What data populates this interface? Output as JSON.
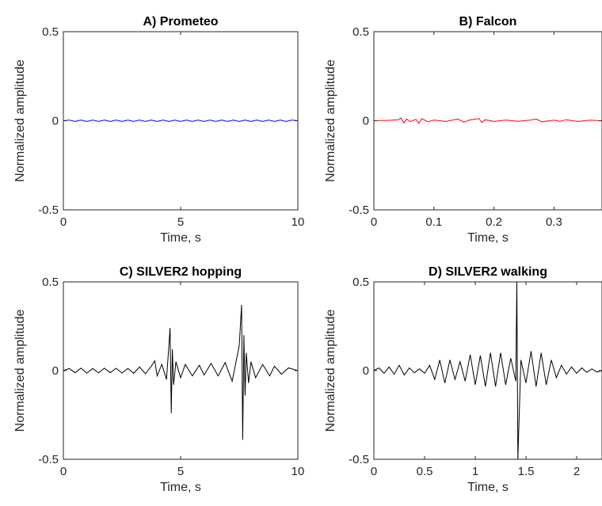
{
  "chart_data": [
    {
      "type": "line",
      "title": "A) Prometeo",
      "xlabel": "Time, s",
      "ylabel": "Normalized amplitude",
      "xlim": [
        0,
        10
      ],
      "ylim": [
        -0.5,
        0.5
      ],
      "xticks": [
        "0",
        "5",
        "10"
      ],
      "yticks": [
        "-0.5",
        "0",
        "0.5"
      ],
      "color": "#0000ff",
      "series": [
        {
          "x": [
            0,
            0.25,
            0.5,
            0.75,
            1,
            1.25,
            1.5,
            1.75,
            2,
            2.25,
            2.5,
            2.75,
            3,
            3.25,
            3.5,
            3.75,
            4,
            4.25,
            4.5,
            4.75,
            5,
            5.25,
            5.5,
            5.75,
            6,
            6.25,
            6.5,
            6.75,
            7,
            7.25,
            7.5,
            7.75,
            8,
            8.25,
            8.5,
            8.75,
            9,
            9.25,
            9.5,
            9.75,
            10
          ],
          "y": [
            0,
            0.004,
            -0.004,
            0.004,
            -0.004,
            0.004,
            -0.004,
            0.004,
            -0.004,
            0.004,
            -0.004,
            0.004,
            -0.004,
            0.004,
            -0.004,
            0.004,
            -0.004,
            0.004,
            -0.004,
            0.004,
            -0.004,
            0.004,
            -0.004,
            0.004,
            -0.004,
            0.004,
            -0.004,
            0.004,
            -0.004,
            0.004,
            -0.004,
            0.004,
            -0.004,
            0.004,
            -0.004,
            0.004,
            -0.004,
            0.004,
            -0.004,
            0.004,
            0
          ]
        }
      ]
    },
    {
      "type": "line",
      "title": "B) Falcon",
      "xlabel": "Time, s",
      "ylabel": "Normalized amplitude",
      "xlim": [
        0,
        0.38
      ],
      "ylim": [
        -0.5,
        0.5
      ],
      "xticks": [
        "0",
        "0.1",
        "0.2",
        "0.3"
      ],
      "yticks": [
        "-0.5",
        "0",
        "0.5"
      ],
      "color": "#ff0000",
      "series": [
        {
          "x": [
            0,
            0.02,
            0.04,
            0.045,
            0.05,
            0.055,
            0.06,
            0.07,
            0.075,
            0.08,
            0.09,
            0.1,
            0.12,
            0.14,
            0.15,
            0.16,
            0.175,
            0.18,
            0.185,
            0.2,
            0.22,
            0.24,
            0.26,
            0.27,
            0.28,
            0.3,
            0.31,
            0.32,
            0.34,
            0.36,
            0.38
          ],
          "y": [
            0,
            0.002,
            0.005,
            0.015,
            -0.012,
            0.01,
            -0.005,
            0.008,
            -0.015,
            0.012,
            -0.006,
            0.004,
            -0.004,
            0.01,
            -0.008,
            0.005,
            0.012,
            -0.01,
            0.006,
            -0.004,
            0.004,
            -0.003,
            0.003,
            0.01,
            -0.006,
            0.003,
            -0.003,
            0.006,
            -0.004,
            0.003,
            0
          ]
        }
      ]
    },
    {
      "type": "line",
      "title": "C) SILVER2 hopping",
      "xlabel": "Time, s",
      "ylabel": "Normalized amplitude",
      "xlim": [
        0,
        10
      ],
      "ylim": [
        -0.5,
        0.5
      ],
      "xticks": [
        "0",
        "5",
        "10"
      ],
      "yticks": [
        "-0.5",
        "0",
        "0.5"
      ],
      "color": "#000000",
      "series": [
        {
          "x": [
            0,
            0.25,
            0.5,
            0.75,
            1,
            1.25,
            1.5,
            1.75,
            2,
            2.25,
            2.5,
            2.75,
            3,
            3.25,
            3.5,
            3.75,
            3.9,
            4,
            4.2,
            4.4,
            4.5,
            4.55,
            4.6,
            4.65,
            4.7,
            4.8,
            5,
            5.2,
            5.5,
            5.8,
            6,
            6.3,
            6.6,
            6.9,
            7.2,
            7.5,
            7.6,
            7.65,
            7.7,
            7.75,
            7.8,
            7.9,
            8,
            8.2,
            8.5,
            8.8,
            9,
            9.3,
            9.6,
            10
          ],
          "y": [
            0,
            0.012,
            -0.012,
            0.014,
            -0.014,
            0.012,
            -0.013,
            0.014,
            -0.012,
            0.013,
            -0.014,
            0.012,
            -0.015,
            0.02,
            -0.018,
            0.025,
            0.055,
            -0.03,
            0.035,
            -0.05,
            0.14,
            0.24,
            -0.24,
            0.12,
            -0.08,
            0.05,
            -0.04,
            0.035,
            -0.03,
            0.03,
            -0.025,
            0.04,
            -0.03,
            0.045,
            -0.06,
            0.14,
            0.37,
            -0.39,
            0.2,
            -0.14,
            0.1,
            -0.07,
            0.05,
            -0.04,
            0.035,
            -0.03,
            0.025,
            -0.02,
            0.015,
            0
          ]
        }
      ]
    },
    {
      "type": "line",
      "title": "D) SILVER2 walking",
      "xlabel": "Time, s",
      "ylabel": "Normalized amplitude",
      "xlim": [
        0,
        2.25
      ],
      "ylim": [
        -0.5,
        0.5
      ],
      "xticks": [
        "0",
        "0.5",
        "1",
        "1.5",
        "2"
      ],
      "yticks": [
        "-0.5",
        "0",
        "0.5"
      ],
      "color": "#000000",
      "series": [
        {
          "x": [
            0,
            0.05,
            0.1,
            0.15,
            0.2,
            0.25,
            0.3,
            0.35,
            0.4,
            0.45,
            0.5,
            0.55,
            0.6,
            0.65,
            0.7,
            0.75,
            0.8,
            0.85,
            0.9,
            0.95,
            1,
            1.05,
            1.1,
            1.15,
            1.2,
            1.25,
            1.3,
            1.35,
            1.4,
            1.41,
            1.42,
            1.45,
            1.5,
            1.55,
            1.6,
            1.65,
            1.7,
            1.75,
            1.8,
            1.85,
            1.9,
            1.95,
            2,
            2.05,
            2.1,
            2.15,
            2.2,
            2.25
          ],
          "y": [
            0,
            0.015,
            -0.015,
            0.02,
            -0.02,
            0.03,
            -0.025,
            0.015,
            -0.012,
            0.01,
            -0.015,
            0.03,
            -0.05,
            0.06,
            -0.07,
            0.06,
            -0.05,
            0.05,
            -0.06,
            0.09,
            -0.08,
            0.085,
            -0.09,
            0.1,
            -0.09,
            0.1,
            -0.08,
            0.07,
            -0.06,
            0.5,
            -0.5,
            0.06,
            -0.07,
            0.11,
            -0.09,
            0.1,
            -0.08,
            0.06,
            -0.04,
            0.03,
            -0.02,
            0.02,
            -0.015,
            0.015,
            -0.01,
            0.01,
            -0.008,
            0
          ]
        }
      ]
    }
  ]
}
